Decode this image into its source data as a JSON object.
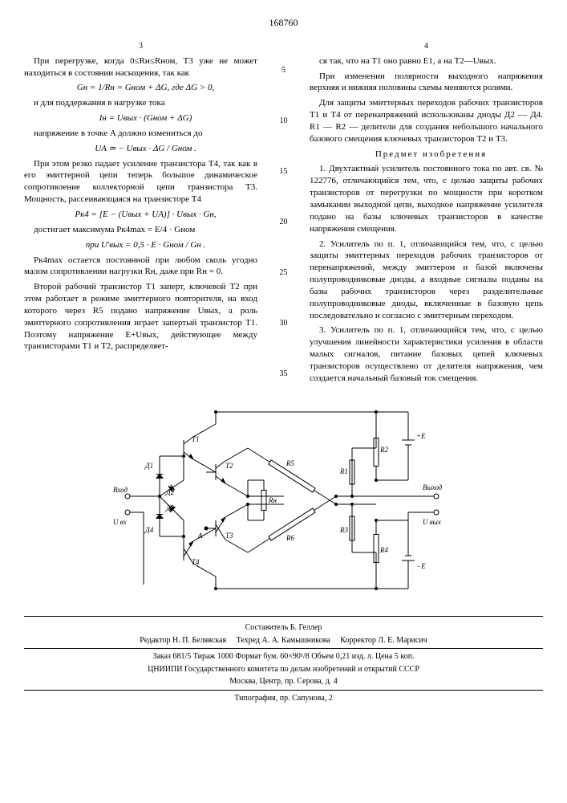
{
  "doc_number": "168760",
  "page_left": "3",
  "page_right": "4",
  "line_markers": [
    "5",
    "10",
    "15",
    "20",
    "25",
    "30",
    "35"
  ],
  "left_column": {
    "p1": "При перегрузке, когда 0≤Rн≤Rном, T3 уже не может находиться в состоянии насыщения, так как",
    "f1": "Gн = 1/Rн = Gном + ΔG,  где ΔG > 0,",
    "p2": "и для поддержания в нагрузке тока",
    "f2": "Iн = Uвых · (Gном + ΔG)",
    "p3": "напряжение в точке A должно измениться до",
    "f3": "UA ≃ − Uвых · ΔG / Gном .",
    "p4": "При этом резко падает усиление транзистора T4, так как в его эмиттерной цепи теперь большое динамическое сопротивление коллекторной цепи транзистора T3. Мощность, рассеивающаяся на транзисторе T4",
    "f4": "Pк4 = [E − (Uвых + UA)] · Uвых · Gн,",
    "p5": "достигает максимума  Pк4max = E/4 · Gном",
    "f5": "при  U'вых = 0,5 · E · Gном / Gн .",
    "p6": "Pк4max остается постоянной при любом сколь угодно малом сопротивлении нагрузки Rн, даже при Rн = 0.",
    "p7": "Второй рабочий транзистор T1 заперт, ключевой T2 при этом работает в режиме эмиттерного повторителя, на вход которого через R5 подано напряжение Uвых, а роль эмиттерного сопротивления играет запертый транзистор T1. Поэтому напряжение E+Uвых, действующее между транзисторами T1 и T2, распределяет-"
  },
  "right_column": {
    "p1": "ся так, что на T1 оно равно E1, а на T2—Uвых.",
    "p2": "При изменении полярности выходного напряжения верхняя и нижняя половины схемы меняются ролями.",
    "p3": "Для защиты эмиттерных переходов рабочих транзисторов T1 и T4 от перенапряжений использованы диоды Д2 — Д4. R1 — R2 — делители для создания небольшого начального базового смещения ключевых транзисторов T2 и T3.",
    "claims_title": "Предмет изобретения",
    "c1": "1. Двухтактный усилитель постоянного тока по авт. св. № 122776, отличающийся тем, что, с целью защиты рабочих транзисторов от перегрузки по мощности при коротком замыкании выходной цепи, выходное напряжение усилителя подано на базы ключевых транзисторов в качестве напряжения смещения.",
    "c2": "2. Усилитель по п. 1, отличающийся тем, что, с целью защиты эмиттерных переходов рабочих транзисторов от перенапряжений, между эмиттером и базой включены полупроводниковые диоды, а входные сигналы поданы на базы рабочих транзисторов через разделительные полупроводниковые диоды, включенные в базовую цепь последовательно и согласно с эмиттерным переходом.",
    "c3": "3. Усилитель по п. 1, отличающийся тем, что, с целью улучшения линейности характеристики усиления в области малых сигналов, питание базовых цепей ключевых транзисторов осуществлено от делителя напряжения, чем создается начальный базовый ток смещения."
  },
  "diagram": {
    "labels": {
      "vhod": "Вход",
      "vyhod": "Выход",
      "uvx": "U вх",
      "uvyx": "U вых",
      "d1": "Д1",
      "d2": "Д2",
      "d3": "Д3",
      "d4": "Д4",
      "t1": "T1",
      "t2": "T2",
      "t3": "T3",
      "t4": "T4",
      "r1": "R1",
      "r2": "R2",
      "r3": "R3",
      "r4": "R4",
      "r5": "R5",
      "r6": "R6",
      "rn": "Rн",
      "e1": "+E",
      "e2": "−E",
      "a": "A"
    },
    "stroke": "#000000",
    "stroke_width": 1,
    "font_size": 9,
    "font_family": "serif"
  },
  "footer": {
    "compiler": "Составитель Б. Геллер",
    "editor": "Редактор Н. П. Белявская",
    "techred": "Техред А. А. Камышникова",
    "corrector": "Корректор Л. Е. Марисич",
    "order": "Заказ 681/5    Тираж 1000    Формат бум. 60×90¹/8    Объем 0,21 изд. л.    Цена 5 коп.",
    "org": "ЦНИИПИ Государственного комитета по делам изобретений и открытий СССР",
    "addr": "Москва, Центр, пр. Серова, д. 4",
    "typo": "Типография, пр. Сапунова, 2"
  }
}
